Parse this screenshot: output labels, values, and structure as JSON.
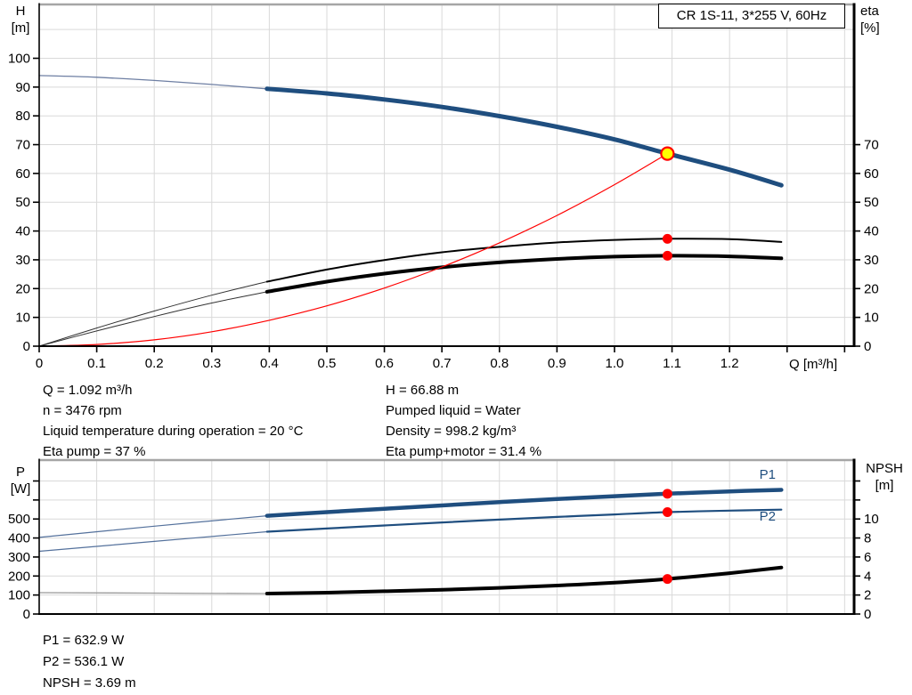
{
  "title_box": "CR 1S-11, 3*255 V, 60Hz",
  "colors": {
    "curve_blue": "#1f4e7f",
    "lead_blue": "#54719c",
    "lead_gray": "#999999",
    "red": "#ff0000",
    "yellow": "#ffff00",
    "black": "#000000",
    "grid": "#d9d9d9",
    "frame": "#a6a6a6"
  },
  "annotations": {
    "duty_left": [
      "Q = 1.092 m³/h",
      "n = 3476 rpm",
      "Liquid temperature during operation = 20 °C",
      "Eta pump = 37 %"
    ],
    "duty_right": [
      "H = 66.88 m",
      "Pumped liquid = Water",
      "Density = 998.2 kg/m³",
      "Eta pump+motor = 31.4 %"
    ],
    "power": [
      "P1 = 632.9 W",
      "P2 = 536.1 W",
      "NPSH = 3.69 m"
    ]
  },
  "chart_data": [
    {
      "type": "line",
      "title": "CR 1S-11, 3*255 V, 60Hz",
      "x": {
        "name": "Q",
        "unit": "[m³/h]",
        "min": 0,
        "max": 1.4165,
        "ticks": [
          0,
          0.1,
          0.2,
          0.3,
          0.4,
          0.5,
          0.6,
          0.7,
          0.8,
          0.9,
          1.0,
          1.1,
          1.2,
          1.3,
          1.4
        ],
        "tick_labels": [
          "0",
          "0.1",
          "0.2",
          "0.3",
          "0.4",
          "0.5",
          "0.6",
          "0.7",
          "0.8",
          "0.9",
          "1.0",
          "1.1",
          "1.2",
          "",
          ""
        ],
        "grid_values": [
          0.1,
          0.2,
          0.3,
          0.4,
          0.5,
          0.6,
          0.7,
          0.8,
          0.9,
          1.0,
          1.1,
          1.2,
          1.3,
          1.4
        ]
      },
      "y_left": {
        "name": "H",
        "unit": "[m]",
        "min": 0,
        "max": 118.7,
        "ticks": [
          0,
          10,
          20,
          30,
          40,
          50,
          60,
          70,
          80,
          90,
          100
        ],
        "tick_labels": [
          "0",
          "10",
          "20",
          "30",
          "40",
          "50",
          "60",
          "70",
          "80",
          "90",
          "100"
        ],
        "grid_values": [
          10,
          20,
          30,
          40,
          50,
          60,
          70,
          80,
          90,
          100,
          110
        ]
      },
      "y_right": {
        "name": "eta",
        "unit": "[%]",
        "min": 0,
        "max": 118.7,
        "ticks": [
          0,
          10,
          20,
          30,
          40,
          50,
          60,
          70
        ],
        "tick_labels": [
          "0",
          "10",
          "20",
          "30",
          "40",
          "50",
          "60",
          "70"
        ]
      },
      "series": [
        {
          "name": "qh-curve-extrapolated",
          "axis": "left",
          "color": "#6e7fa3",
          "width": 1.3,
          "points": [
            [
              0,
              94
            ],
            [
              0.1,
              93.4
            ],
            [
              0.2,
              92.3
            ],
            [
              0.3,
              90.9
            ],
            [
              0.396,
              89.4
            ]
          ]
        },
        {
          "name": "qh-curve",
          "axis": "left",
          "color": "#1f4e7f",
          "width": 5,
          "points": [
            [
              0.396,
              89.4
            ],
            [
              0.5,
              87.8
            ],
            [
              0.6,
              85.7
            ],
            [
              0.7,
              83.1
            ],
            [
              0.8,
              79.9
            ],
            [
              0.9,
              76.2
            ],
            [
              1.0,
              71.8
            ],
            [
              1.092,
              66.88
            ],
            [
              1.2,
              61.3
            ],
            [
              1.29,
              55.9
            ]
          ]
        },
        {
          "name": "eta-pump-curve-extrapolated",
          "axis": "right",
          "color": "#333333",
          "width": 1,
          "points": [
            [
              0,
              0
            ],
            [
              0.1,
              6.3
            ],
            [
              0.2,
              12.2
            ],
            [
              0.3,
              17.7
            ],
            [
              0.396,
              22.4
            ]
          ]
        },
        {
          "name": "eta-pump-motor-curve-extrapolated",
          "axis": "right",
          "color": "#333333",
          "width": 1,
          "points": [
            [
              0,
              0
            ],
            [
              0.1,
              5.3
            ],
            [
              0.2,
              10.3
            ],
            [
              0.3,
              15.0
            ],
            [
              0.396,
              18.9
            ]
          ]
        },
        {
          "name": "eta-pump-curve",
          "axis": "right",
          "color": "#000000",
          "width": 2,
          "points": [
            [
              0.396,
              22.4
            ],
            [
              0.5,
              26.6
            ],
            [
              0.6,
              29.9
            ],
            [
              0.7,
              32.6
            ],
            [
              0.8,
              34.5
            ],
            [
              0.9,
              36.0
            ],
            [
              1.0,
              36.9
            ],
            [
              1.092,
              37.3
            ],
            [
              1.2,
              37.2
            ],
            [
              1.29,
              36.2
            ]
          ]
        },
        {
          "name": "eta-pump-motor-curve",
          "axis": "right",
          "color": "#000000",
          "width": 4,
          "points": [
            [
              0.396,
              18.9
            ],
            [
              0.5,
              22.4
            ],
            [
              0.6,
              25.2
            ],
            [
              0.7,
              27.4
            ],
            [
              0.8,
              29.1
            ],
            [
              0.9,
              30.3
            ],
            [
              1.0,
              31.1
            ],
            [
              1.092,
              31.4
            ],
            [
              1.2,
              31.2
            ],
            [
              1.29,
              30.5
            ]
          ]
        },
        {
          "name": "system-curve",
          "axis": "left",
          "color": "#ff0000",
          "width": 1.2,
          "points": [
            [
              0,
              0
            ],
            [
              0.1,
              0.6
            ],
            [
              0.2,
              2.2
            ],
            [
              0.3,
              5.0
            ],
            [
              0.4,
              9.0
            ],
            [
              0.5,
              14.0
            ],
            [
              0.6,
              20.2
            ],
            [
              0.7,
              27.5
            ],
            [
              0.8,
              35.9
            ],
            [
              0.9,
              45.4
            ],
            [
              1.0,
              56.1
            ],
            [
              1.092,
              66.88
            ]
          ]
        }
      ],
      "markers": [
        {
          "name": "duty-point",
          "axis": "left",
          "q": 1.092,
          "value": 66.88,
          "fill": "#ffff00",
          "stroke": "#ff0000",
          "stroke_width": 2.2,
          "r": 7
        },
        {
          "name": "eta-pump-point",
          "axis": "right",
          "q": 1.092,
          "value": 37.3,
          "fill": "#ff0000",
          "r": 5.5
        },
        {
          "name": "eta-pump-motor-point",
          "axis": "right",
          "q": 1.092,
          "value": 31.4,
          "fill": "#ff0000",
          "r": 5.5
        }
      ],
      "labels": []
    },
    {
      "type": "line",
      "title": "Power / NPSH curves",
      "x": {
        "name": "Q",
        "unit": "[m³/h]",
        "min": 0,
        "max": 1.4165,
        "ticks": [],
        "tick_labels": [],
        "grid_values": [
          0.1,
          0.2,
          0.3,
          0.4,
          0.5,
          0.6,
          0.7,
          0.8,
          0.9,
          1.0,
          1.1,
          1.2,
          1.3,
          1.4
        ]
      },
      "y_left": {
        "name": "P",
        "unit": "[W]",
        "min": 0,
        "max": 810,
        "ticks": [
          0,
          100,
          200,
          300,
          400,
          500,
          600,
          700
        ],
        "tick_labels": [
          "0",
          "100",
          "200",
          "300",
          "400",
          "500",
          "",
          ""
        ],
        "grid_values": [
          100,
          200,
          300,
          400,
          500,
          600,
          700
        ]
      },
      "y_right": {
        "name": "NPSH",
        "unit": "[m]",
        "min": 0,
        "max": 16.2,
        "ticks": [
          0,
          2,
          4,
          6,
          8,
          10,
          12,
          14
        ],
        "tick_labels": [
          "0",
          "2",
          "4",
          "6",
          "8",
          "10",
          "",
          ""
        ]
      },
      "series": [
        {
          "name": "p1-curve-extrapolated",
          "axis": "left",
          "color": "#54719c",
          "width": 1.2,
          "points": [
            [
              0,
              403
            ],
            [
              0.2,
              462
            ],
            [
              0.396,
              517
            ]
          ]
        },
        {
          "name": "p2-curve-extrapolated",
          "axis": "left",
          "color": "#54719c",
          "width": 1.2,
          "points": [
            [
              0,
              330
            ],
            [
              0.2,
              382
            ],
            [
              0.396,
              433
            ]
          ]
        },
        {
          "name": "npsh-curve-extrapolated",
          "axis": "right",
          "color": "#999999",
          "width": 1.3,
          "points": [
            [
              0,
              2.25
            ],
            [
              0.2,
              2.2
            ],
            [
              0.396,
              2.15
            ]
          ]
        },
        {
          "name": "p1-curve",
          "axis": "left",
          "color": "#1f4e7f",
          "width": 4.5,
          "points": [
            [
              0.396,
              517
            ],
            [
              0.5,
              536
            ],
            [
              0.6,
              554
            ],
            [
              0.7,
              571
            ],
            [
              0.8,
              589
            ],
            [
              0.9,
              605
            ],
            [
              1.0,
              620
            ],
            [
              1.092,
              632.9
            ],
            [
              1.2,
              645
            ],
            [
              1.29,
              653
            ]
          ]
        },
        {
          "name": "p2-curve",
          "axis": "left",
          "color": "#1f4e7f",
          "width": 2.2,
          "points": [
            [
              0.396,
              433
            ],
            [
              0.5,
              450
            ],
            [
              0.6,
              466
            ],
            [
              0.7,
              482
            ],
            [
              0.8,
              497
            ],
            [
              0.9,
              511
            ],
            [
              1.0,
              524
            ],
            [
              1.092,
              536.1
            ],
            [
              1.2,
              544
            ],
            [
              1.29,
              549
            ]
          ]
        },
        {
          "name": "npsh-curve",
          "axis": "right",
          "color": "#000000",
          "width": 4,
          "points": [
            [
              0.396,
              2.15
            ],
            [
              0.5,
              2.25
            ],
            [
              0.6,
              2.4
            ],
            [
              0.7,
              2.55
            ],
            [
              0.8,
              2.75
            ],
            [
              0.9,
              3.0
            ],
            [
              1.0,
              3.3
            ],
            [
              1.092,
              3.69
            ],
            [
              1.2,
              4.3
            ],
            [
              1.29,
              4.9
            ]
          ]
        }
      ],
      "markers": [
        {
          "name": "p1-point",
          "axis": "left",
          "q": 1.092,
          "value": 632.9,
          "fill": "#ff0000",
          "r": 5.5
        },
        {
          "name": "p2-point",
          "axis": "left",
          "q": 1.092,
          "value": 536.1,
          "fill": "#ff0000",
          "r": 5.5
        },
        {
          "name": "npsh-point",
          "axis": "right",
          "q": 1.092,
          "value": 3.69,
          "fill": "#ff0000",
          "r": 5.5
        }
      ],
      "labels": [
        {
          "text": "P1",
          "axis": "left",
          "q": 1.266,
          "value": 711,
          "color": "#1f4e7f"
        },
        {
          "text": "P2",
          "axis": "left",
          "q": 1.266,
          "value": 491,
          "color": "#1f4e7f"
        }
      ]
    }
  ]
}
